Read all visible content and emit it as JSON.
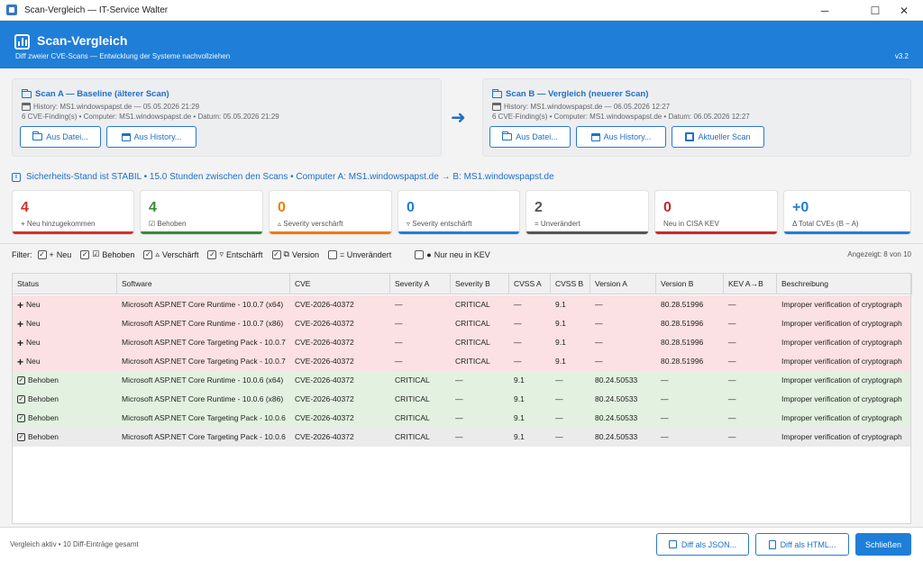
{
  "window": {
    "title": "Scan-Vergleich — IT-Service Walter",
    "minimize": "─",
    "maximize": "☐",
    "close": "✕"
  },
  "banner": {
    "title": "Scan-Vergleich",
    "subtitle": "Diff zweier CVE-Scans — Entwicklung der Systeme nachvollziehen",
    "version": "v3.2",
    "color": "#1f7ed8"
  },
  "scan_a": {
    "heading": "Scan A — Baseline (älterer Scan)",
    "history": "History: MS1.windowspapst.de — 05.05.2026 21:29",
    "details": "6 CVE-Finding(s) • Computer: MS1.windowspapst.de • Datum: 05.05.2026 21:29",
    "btn_file": "Aus Datei...",
    "btn_history": "Aus History..."
  },
  "scan_b": {
    "heading": "Scan B — Vergleich (neuerer Scan)",
    "history": "History: MS1.windowspapst.de — 06.05.2026 12:27",
    "details": "6 CVE-Finding(s) • Computer: MS1.windowspapst.de • Datum: 06.05.2026 12:27",
    "btn_file": "Aus Datei...",
    "btn_history": "Aus History...",
    "btn_current": "Aktueller Scan"
  },
  "arrow": "➜",
  "status": {
    "text": "Sicherheits-Stand ist STABIL  •  15.0 Stunden zwischen den Scans  •  Computer A: MS1.windowspapst.de → B: MS1.windowspapst.de"
  },
  "cards": [
    {
      "value": "4",
      "label": "+ Neu hinzugekommen",
      "color": "#d32f2f"
    },
    {
      "value": "4",
      "label": "☑ Behoben",
      "color": "#3a8a3a"
    },
    {
      "value": "0",
      "label": "▵ Severity verschärft",
      "color": "#ef7d00"
    },
    {
      "value": "0",
      "label": "▿ Severity entschärft",
      "color": "#1f7ed8"
    },
    {
      "value": "2",
      "label": "= Unverändert",
      "color": "#555555"
    },
    {
      "value": "0",
      "label": "Neu in CISA KEV",
      "color": "#c62828"
    },
    {
      "value": "+0",
      "label": "Δ Total CVEs (B − A)",
      "color": "#1f7ed8"
    }
  ],
  "filters": {
    "label": "Filter:",
    "items": [
      {
        "label": "Neu",
        "checked": true,
        "icon": "+"
      },
      {
        "label": "Behoben",
        "checked": true,
        "icon": "☑"
      },
      {
        "label": "Verschärft",
        "checked": true,
        "icon": "▵"
      },
      {
        "label": "Entschärft",
        "checked": true,
        "icon": "▿"
      },
      {
        "label": "Version",
        "checked": true,
        "icon": "⧉"
      },
      {
        "label": "= Unverändert",
        "checked": false,
        "icon": ""
      },
      {
        "label": "Nur neu in KEV",
        "checked": false,
        "icon": "●"
      }
    ],
    "shown": "Angezeigt: 8 von 10"
  },
  "table": {
    "columns": [
      "Status",
      "Software",
      "CVE",
      "Severity A",
      "Severity B",
      "CVSS A",
      "CVSS B",
      "Version A",
      "Version B",
      "KEV A→B",
      "Beschreibung"
    ],
    "rows": [
      {
        "kind": "neu",
        "status": "Neu",
        "software": "Microsoft ASP.NET Core Runtime - 10.0.7 (x64)",
        "cve": "CVE-2026-40372",
        "sev_a": "—",
        "sev_b": "CRITICAL",
        "cvss_a": "—",
        "cvss_b": "9.1",
        "ver_a": "—",
        "ver_b": "80.28.51996",
        "kev": "—",
        "desc": "Improper verification of cryptograph"
      },
      {
        "kind": "neu",
        "status": "Neu",
        "software": "Microsoft ASP.NET Core Runtime - 10.0.7 (x86)",
        "cve": "CVE-2026-40372",
        "sev_a": "—",
        "sev_b": "CRITICAL",
        "cvss_a": "—",
        "cvss_b": "9.1",
        "ver_a": "—",
        "ver_b": "80.28.51996",
        "kev": "—",
        "desc": "Improper verification of cryptograph"
      },
      {
        "kind": "neu",
        "status": "Neu",
        "software": "Microsoft ASP.NET Core Targeting Pack - 10.0.7",
        "cve": "CVE-2026-40372",
        "sev_a": "—",
        "sev_b": "CRITICAL",
        "cvss_a": "—",
        "cvss_b": "9.1",
        "ver_a": "—",
        "ver_b": "80.28.51996",
        "kev": "—",
        "desc": "Improper verification of cryptograph"
      },
      {
        "kind": "neu",
        "status": "Neu",
        "software": "Microsoft ASP.NET Core Targeting Pack - 10.0.7",
        "cve": "CVE-2026-40372",
        "sev_a": "—",
        "sev_b": "CRITICAL",
        "cvss_a": "—",
        "cvss_b": "9.1",
        "ver_a": "—",
        "ver_b": "80.28.51996",
        "kev": "—",
        "desc": "Improper verification of cryptograph"
      },
      {
        "kind": "behoben",
        "status": "Behoben",
        "software": "Microsoft ASP.NET Core Runtime - 10.0.6 (x64)",
        "cve": "CVE-2026-40372",
        "sev_a": "CRITICAL",
        "sev_b": "—",
        "cvss_a": "9.1",
        "cvss_b": "—",
        "ver_a": "80.24.50533",
        "ver_b": "—",
        "kev": "—",
        "desc": "Improper verification of cryptograph"
      },
      {
        "kind": "behoben",
        "status": "Behoben",
        "software": "Microsoft ASP.NET Core Runtime - 10.0.6 (x86)",
        "cve": "CVE-2026-40372",
        "sev_a": "CRITICAL",
        "sev_b": "—",
        "cvss_a": "9.1",
        "cvss_b": "—",
        "ver_a": "80.24.50533",
        "ver_b": "—",
        "kev": "—",
        "desc": "Improper verification of cryptograph"
      },
      {
        "kind": "behoben",
        "status": "Behoben",
        "software": "Microsoft ASP.NET Core Targeting Pack - 10.0.6",
        "cve": "CVE-2026-40372",
        "sev_a": "CRITICAL",
        "sev_b": "—",
        "cvss_a": "9.1",
        "cvss_b": "—",
        "ver_a": "80.24.50533",
        "ver_b": "—",
        "kev": "—",
        "desc": "Improper verification of cryptograph"
      },
      {
        "kind": "sel",
        "status": "Behoben",
        "software": "Microsoft ASP.NET Core Targeting Pack - 10.0.6",
        "cve": "CVE-2026-40372",
        "sev_a": "CRITICAL",
        "sev_b": "—",
        "cvss_a": "9.1",
        "cvss_b": "—",
        "ver_a": "80.24.50533",
        "ver_b": "—",
        "kev": "—",
        "desc": "Improper verification of cryptograph"
      }
    ]
  },
  "footer": {
    "text": "Vergleich aktiv • 10 Diff-Einträge gesamt",
    "btn_json": "Diff als JSON...",
    "btn_html": "Diff als HTML...",
    "btn_close": "Schließen"
  }
}
